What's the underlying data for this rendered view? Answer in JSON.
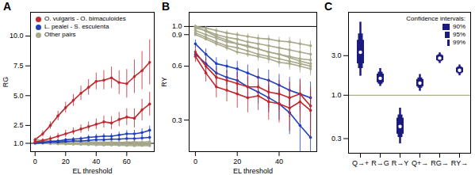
{
  "chart_data": [
    {
      "type": "line",
      "title": "A",
      "x_label": "EL threshold",
      "y_label": "RG",
      "x": [
        0,
        5,
        10,
        15,
        20,
        25,
        30,
        35,
        40,
        45,
        50,
        55,
        60,
        65,
        70,
        75
      ],
      "xlim": [
        -3,
        78
      ],
      "xticks": [
        0,
        20,
        40,
        60
      ],
      "ylim": [
        0.3,
        12
      ],
      "yticks": [
        {
          "value": 1,
          "label": "1.0"
        },
        {
          "value": 2.5,
          "label": "2.5"
        },
        {
          "value": 5,
          "label": "5.0"
        },
        {
          "value": 7.5,
          "label": "7.5"
        },
        {
          "value": 10,
          "label": "10.0"
        }
      ],
      "legend": "top-left",
      "reference_line": {
        "value": 1,
        "color": "#000000"
      },
      "series": [
        {
          "name": "O. vulgaris - O. bimaculoides",
          "color": "#c0282d",
          "values": [
            1.3,
            1.8,
            2.5,
            3.3,
            4.0,
            4.6,
            5.2,
            5.7,
            6.2,
            6.3,
            6.5,
            6.1,
            6.0,
            6.6,
            7.1,
            7.8
          ],
          "errors": [
            0.15,
            0.25,
            0.3,
            0.4,
            0.45,
            0.5,
            0.6,
            0.65,
            0.7,
            0.8,
            0.9,
            1.0,
            1.2,
            1.4,
            1.6,
            1.9
          ]
        },
        {
          "name": "O. vulgaris - O. bimaculoides",
          "color": "#c0282d",
          "values": [
            1.1,
            1.25,
            1.4,
            1.6,
            1.8,
            2.0,
            2.2,
            2.4,
            2.6,
            2.8,
            2.7,
            3.0,
            3.2,
            3.1,
            3.8,
            4.3
          ],
          "errors": [
            0.1,
            0.15,
            0.2,
            0.25,
            0.3,
            0.3,
            0.35,
            0.4,
            0.45,
            0.5,
            0.55,
            0.6,
            0.7,
            0.8,
            0.9,
            1.0
          ]
        },
        {
          "name": "L. pealei - S. esculenta",
          "color": "#1f3fbf",
          "values": [
            1.05,
            1.1,
            1.15,
            1.2,
            1.3,
            1.35,
            1.4,
            1.5,
            1.55,
            1.6,
            1.6,
            1.7,
            1.8,
            1.8,
            1.9,
            2.1
          ],
          "errors": [
            0.08,
            0.1,
            0.1,
            0.12,
            0.12,
            0.15,
            0.15,
            0.18,
            0.2,
            0.2,
            0.22,
            0.25,
            0.28,
            0.3,
            0.32,
            0.35
          ]
        },
        {
          "name": "L. pealei - S. esculenta",
          "color": "#1f3fbf",
          "values": [
            1.0,
            1.05,
            1.1,
            1.1,
            1.15,
            1.2,
            1.2,
            1.25,
            1.3,
            1.3,
            1.35,
            1.35,
            1.4,
            1.4,
            1.45,
            1.5
          ],
          "errors": [
            0.06,
            0.07,
            0.08,
            0.08,
            0.1,
            0.1,
            0.11,
            0.12,
            0.12,
            0.14,
            0.15,
            0.16,
            0.18,
            0.2,
            0.22,
            0.25
          ]
        },
        {
          "name": "Other pairs",
          "color": "#a8a88a",
          "values": [
            1.3,
            1.25,
            1.2,
            1.2,
            1.18,
            1.15,
            1.15,
            1.12,
            1.1,
            1.1,
            1.1,
            1.08,
            1.1,
            1.12,
            1.1,
            1.15
          ],
          "errors": [
            0.05,
            0.05,
            0.06,
            0.06,
            0.07,
            0.07,
            0.08,
            0.08,
            0.09,
            0.09,
            0.1,
            0.1,
            0.11,
            0.12,
            0.13,
            0.15
          ]
        },
        {
          "name": "Other pairs",
          "color": "#a8a88a",
          "values": [
            1.2,
            1.15,
            1.12,
            1.1,
            1.08,
            1.05,
            1.05,
            1.03,
            1.02,
            1.0,
            1.0,
            1.0,
            0.98,
            1.0,
            1.02,
            1.0
          ],
          "errors": [
            0.05,
            0.05,
            0.06,
            0.06,
            0.07,
            0.07,
            0.08,
            0.08,
            0.09,
            0.09,
            0.1,
            0.1,
            0.11,
            0.12,
            0.13,
            0.15
          ]
        },
        {
          "name": "Other pairs",
          "color": "#a8a88a",
          "values": [
            1.1,
            1.05,
            1.02,
            1.0,
            0.98,
            0.97,
            0.95,
            0.95,
            0.93,
            0.92,
            0.92,
            0.9,
            0.9,
            0.88,
            0.9,
            0.88
          ],
          "errors": [
            0.05,
            0.05,
            0.06,
            0.06,
            0.07,
            0.07,
            0.08,
            0.08,
            0.09,
            0.09,
            0.1,
            0.1,
            0.11,
            0.12,
            0.13,
            0.15
          ]
        },
        {
          "name": "Other pairs",
          "color": "#a8a88a",
          "values": [
            1.05,
            1.0,
            0.97,
            0.95,
            0.93,
            0.92,
            0.9,
            0.88,
            0.87,
            0.85,
            0.85,
            0.83,
            0.82,
            0.8,
            0.82,
            0.8
          ],
          "errors": [
            0.05,
            0.05,
            0.06,
            0.06,
            0.07,
            0.07,
            0.08,
            0.08,
            0.09,
            0.09,
            0.1,
            0.1,
            0.11,
            0.12,
            0.13,
            0.15
          ]
        }
      ]
    },
    {
      "type": "line",
      "title": "B",
      "x_label": "EL threshold",
      "y_label": "RY",
      "x": [
        0,
        5,
        10,
        15,
        20,
        25,
        30,
        35,
        40,
        45,
        50,
        55
      ],
      "xlim": [
        -3,
        58
      ],
      "xticks": [
        0,
        20,
        40
      ],
      "log": "y",
      "ylim": [
        0.2,
        1.2
      ],
      "yticks": [
        0.3,
        0.6,
        0.9,
        {
          "value": 1,
          "label": "1.0"
        }
      ],
      "reference_line": {
        "value": 1,
        "color": "#000000"
      },
      "series": [
        {
          "color": "#c0282d",
          "values": [
            0.68,
            0.55,
            0.46,
            0.44,
            0.42,
            0.4,
            0.41,
            0.38,
            0.37,
            0.35,
            0.38,
            0.34
          ],
          "errors": [
            0.05,
            0.06,
            0.06,
            0.06,
            0.07,
            0.07,
            0.07,
            0.08,
            0.08,
            0.09,
            0.09,
            0.1
          ]
        },
        {
          "color": "#c0282d",
          "values": [
            0.72,
            0.6,
            0.52,
            0.5,
            0.48,
            0.46,
            0.46,
            0.43,
            0.42,
            0.4,
            0.42,
            0.36
          ],
          "errors": [
            0.05,
            0.06,
            0.06,
            0.06,
            0.07,
            0.07,
            0.07,
            0.08,
            0.08,
            0.09,
            0.09,
            0.1
          ]
        },
        {
          "color": "#1f3fbf",
          "values": [
            0.8,
            0.7,
            0.62,
            0.6,
            0.58,
            0.55,
            0.52,
            0.5,
            0.47,
            0.44,
            0.42,
            0.4
          ],
          "errors": [
            0.04,
            0.05,
            0.05,
            0.05,
            0.06,
            0.06,
            0.06,
            0.07,
            0.07,
            0.08,
            0.08,
            0.09
          ]
        },
        {
          "color": "#1f3fbf",
          "values": [
            0.7,
            0.62,
            0.55,
            0.52,
            0.5,
            0.46,
            0.43,
            0.4,
            0.37,
            0.33,
            0.28,
            0.24
          ],
          "errors": [
            0.04,
            0.05,
            0.05,
            0.05,
            0.06,
            0.06,
            0.06,
            0.07,
            0.07,
            0.08,
            0.08,
            0.09
          ]
        },
        {
          "color": "#a8a88a",
          "values": [
            1.0,
            0.98,
            0.95,
            0.92,
            0.9,
            0.88,
            0.86,
            0.85,
            0.83,
            0.82,
            0.8,
            0.78
          ],
          "errors": [
            0.02,
            0.02,
            0.03,
            0.03,
            0.03,
            0.03,
            0.04,
            0.04,
            0.04,
            0.05,
            0.05,
            0.05
          ]
        },
        {
          "color": "#a8a88a",
          "values": [
            0.98,
            0.95,
            0.9,
            0.87,
            0.85,
            0.82,
            0.8,
            0.78,
            0.76,
            0.74,
            0.72,
            0.7
          ],
          "errors": [
            0.02,
            0.02,
            0.03,
            0.03,
            0.03,
            0.03,
            0.04,
            0.04,
            0.04,
            0.05,
            0.05,
            0.05
          ]
        },
        {
          "color": "#a8a88a",
          "values": [
            0.95,
            0.9,
            0.86,
            0.82,
            0.8,
            0.77,
            0.75,
            0.72,
            0.7,
            0.68,
            0.66,
            0.65
          ],
          "errors": [
            0.02,
            0.02,
            0.03,
            0.03,
            0.03,
            0.03,
            0.04,
            0.04,
            0.04,
            0.05,
            0.05,
            0.05
          ]
        },
        {
          "color": "#a8a88a",
          "values": [
            0.92,
            0.87,
            0.82,
            0.78,
            0.76,
            0.73,
            0.7,
            0.68,
            0.66,
            0.64,
            0.62,
            0.6
          ],
          "errors": [
            0.02,
            0.02,
            0.03,
            0.03,
            0.03,
            0.03,
            0.04,
            0.04,
            0.04,
            0.05,
            0.05,
            0.05
          ]
        },
        {
          "color": "#a8a88a",
          "values": [
            0.9,
            0.85,
            0.8,
            0.76,
            0.72,
            0.7,
            0.68,
            0.66,
            0.63,
            0.62,
            0.6,
            0.58
          ],
          "errors": [
            0.02,
            0.02,
            0.03,
            0.03,
            0.03,
            0.03,
            0.04,
            0.04,
            0.04,
            0.05,
            0.05,
            0.05
          ]
        },
        {
          "color": "#a8a88a",
          "values": [
            1.0,
            0.94,
            0.88,
            0.84,
            0.8,
            0.78,
            0.75,
            0.72,
            0.7,
            0.67,
            0.64,
            0.62
          ],
          "errors": [
            0.02,
            0.02,
            0.03,
            0.03,
            0.03,
            0.03,
            0.04,
            0.04,
            0.04,
            0.05,
            0.05,
            0.05
          ]
        }
      ]
    },
    {
      "type": "interval",
      "title": "C",
      "color": "#1a1a80",
      "categories": [
        "Q→+",
        "R→G",
        "R→Y",
        "Q+→",
        "RG→",
        "RY→"
      ],
      "values": [
        3.3,
        1.6,
        0.42,
        1.4,
        2.8,
        2.0
      ],
      "log": "y",
      "ylim": [
        0.2,
        10
      ],
      "yticks": [
        0.3,
        {
          "value": 1,
          "label": "1.0"
        },
        {
          "value": 3,
          "label": "3.0"
        }
      ],
      "reference_line": {
        "value": 1,
        "color": "#9a9a6a"
      },
      "legend": "top-right",
      "legend_title": "Confidence intervals:",
      "intervals": [
        {
          "name": "90%",
          "lower": [
            2.4,
            1.42,
            0.34,
            1.27,
            2.62,
            1.87
          ],
          "upper": [
            4.6,
            1.8,
            0.53,
            1.55,
            3.0,
            2.14
          ]
        },
        {
          "name": "95%",
          "lower": [
            2.1,
            1.36,
            0.31,
            1.22,
            2.55,
            1.82
          ],
          "upper": [
            5.5,
            1.9,
            0.58,
            1.62,
            3.08,
            2.2
          ]
        },
        {
          "name": "99%",
          "lower": [
            1.7,
            1.28,
            0.26,
            1.12,
            2.42,
            1.72
          ],
          "upper": [
            7.6,
            2.1,
            0.7,
            1.78,
            3.25,
            2.32
          ]
        }
      ]
    }
  ]
}
